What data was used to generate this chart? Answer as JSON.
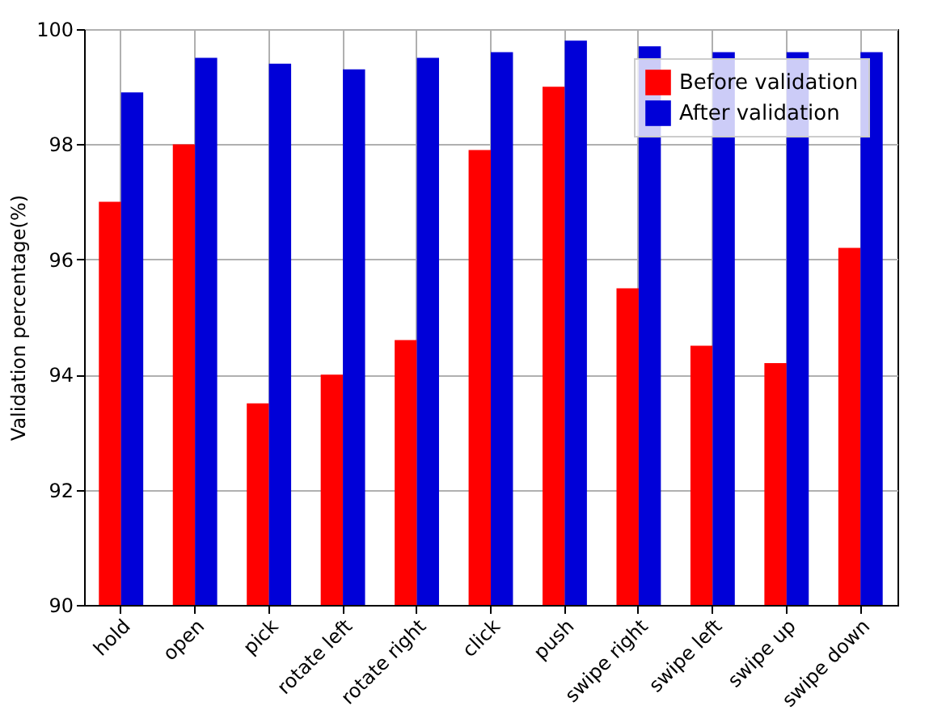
{
  "chart_data": {
    "type": "bar",
    "ylabel": "Validation percentage(%)",
    "categories": [
      "hold",
      "open",
      "pick",
      "rotate left",
      "rotate right",
      "click",
      "push",
      "swipe right",
      "swipe left",
      "swipe up",
      "swipe down"
    ],
    "series": [
      {
        "name": "Before validation",
        "color": "#ff0000",
        "values": [
          97.0,
          98.0,
          93.5,
          94.0,
          94.6,
          97.9,
          99.0,
          95.5,
          94.5,
          94.2,
          96.2
        ]
      },
      {
        "name": "After validation",
        "color": "#0000d8",
        "values": [
          98.9,
          99.5,
          99.4,
          99.3,
          99.5,
          99.6,
          99.8,
          99.7,
          99.6,
          99.6,
          99.6
        ]
      }
    ],
    "ylim": [
      90,
      100
    ],
    "yticks": [
      90,
      92,
      94,
      96,
      98,
      100
    ],
    "grid": true,
    "legend": "top right"
  }
}
